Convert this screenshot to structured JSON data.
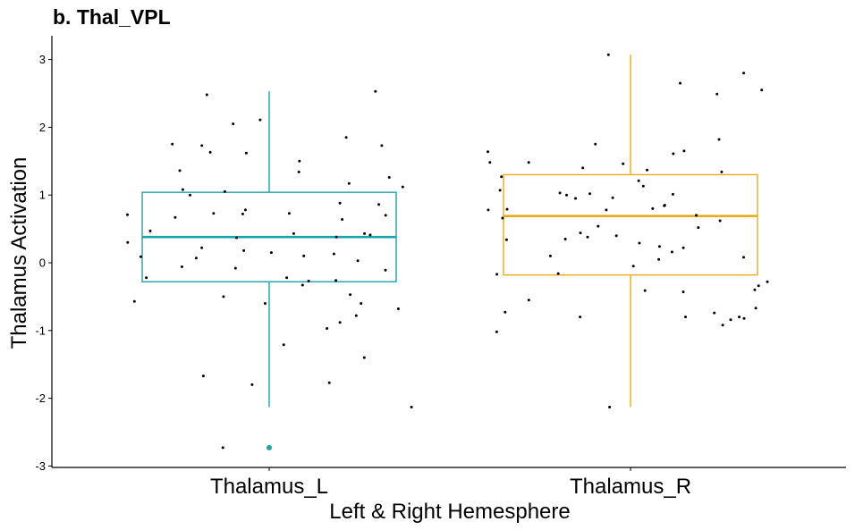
{
  "chart_data": {
    "type": "box",
    "title": "b. Thal_VPL",
    "xlabel": "Left & Right Hemesphere",
    "ylabel": "Thalamus Activation",
    "ylim": [
      -3.05,
      3.35
    ],
    "yticks": [
      -3,
      -2,
      -1,
      0,
      1,
      2,
      3
    ],
    "ytick_labels": [
      "-3",
      "-2",
      "-1",
      "0",
      "1",
      "2",
      "3"
    ],
    "grid": false,
    "legend": "none",
    "categories": [
      "Thalamus_L",
      "Thalamus_R"
    ],
    "boxes": [
      {
        "category": "Thalamus_L",
        "color": "#1aa3a8",
        "whisker_low": -2.13,
        "q1": -0.28,
        "median": 0.38,
        "q3": 1.04,
        "whisker_high": 2.53,
        "outliers": [
          -2.73
        ]
      },
      {
        "category": "Thalamus_R",
        "color": "#e8ac16",
        "whisker_low": -2.13,
        "q1": -0.18,
        "median": 0.69,
        "q3": 1.3,
        "whisker_high": 3.07,
        "outliers": []
      }
    ],
    "points": [
      {
        "category": "Thalamus_L",
        "values": [
          -1.4,
          -2.13,
          1.73,
          0.7,
          0.37,
          1.08,
          -0.68,
          0.86,
          0.78,
          -0.08,
          -0.11,
          1.12,
          -0.33,
          2.53,
          0.22,
          -0.22,
          -0.06,
          0.13,
          1.75,
          1.63,
          1.85,
          0.73,
          0.43,
          0.03,
          1.26,
          -0.6,
          1.73,
          1.62,
          0.18,
          -1.21,
          1.0,
          1.17,
          0.47,
          0.88,
          0.3,
          2.48,
          0.72,
          0.15,
          -0.22,
          0.1,
          -0.97,
          -2.73,
          -0.78,
          0.71,
          -0.57,
          2.05,
          0.43,
          0.09,
          -0.88,
          1.34,
          -0.6,
          -0.5,
          -0.26,
          0.64,
          0.73,
          -0.27,
          -1.67,
          0.41,
          0.38,
          -0.47,
          1.5,
          -1.8,
          -1.77,
          0.07,
          0.67,
          2.11,
          1.36,
          1.05
        ]
      },
      {
        "category": "Thalamus_R",
        "values": [
          1.46,
          -0.84,
          1.75,
          1.48,
          1.61,
          0.22,
          2.8,
          1.64,
          -0.43,
          -0.55,
          -0.8,
          -0.74,
          0.95,
          -1.02,
          -2.13,
          2.49,
          1.13,
          0.78,
          1.07,
          1.0,
          -0.67,
          0.4,
          0.16,
          1.01,
          0.96,
          0.34,
          -0.41,
          3.07,
          2.55,
          -0.73,
          -0.92,
          0.52,
          0.05,
          0.66,
          1.34,
          0.8,
          0.29,
          0.85,
          0.78,
          2.65,
          1.37,
          1.21,
          -0.82,
          1.27,
          1.4,
          0.84,
          -0.05,
          -0.16,
          1.03,
          1.02,
          1.65,
          0.1,
          1.48,
          0.79,
          -0.4,
          -0.8,
          1.82,
          0.62,
          0.54,
          0.44,
          0.35,
          -0.34,
          -0.17,
          0.7,
          -0.28,
          0.38,
          0.24,
          0.08,
          -0.8
        ]
      }
    ]
  }
}
